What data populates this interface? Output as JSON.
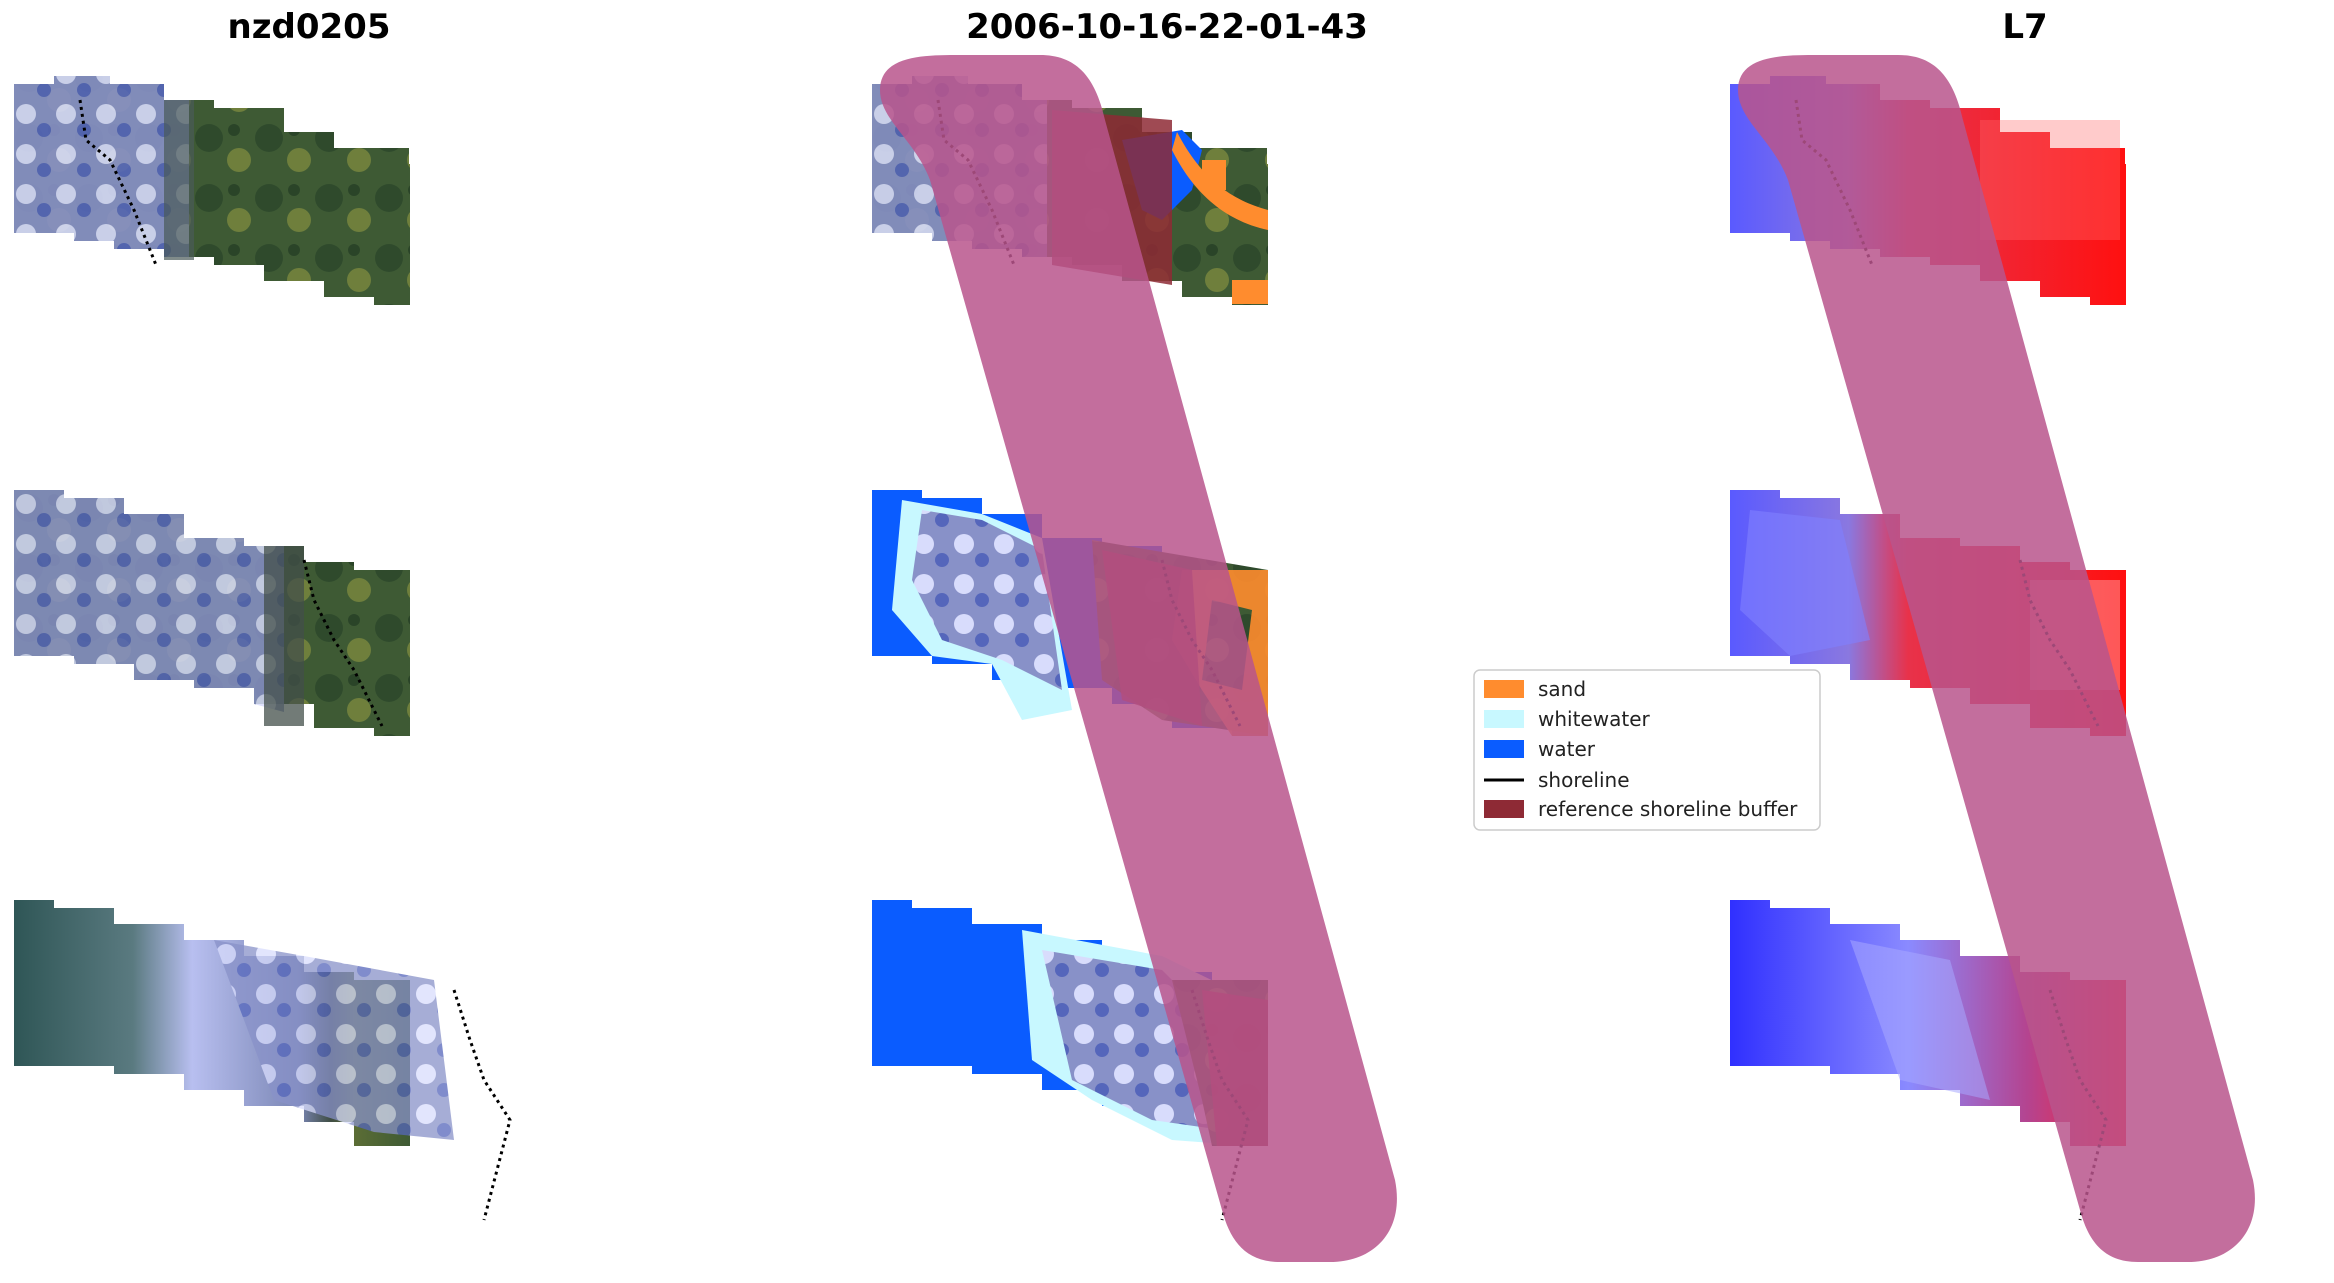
{
  "titles": {
    "left": "nzd0205",
    "center": "2006-10-16-22-01-43",
    "right": "L7"
  },
  "legend": {
    "items": [
      {
        "label": "sand",
        "color": "#ff8c2e",
        "kind": "patch"
      },
      {
        "label": "whitewater",
        "color": "#c8f8ff",
        "kind": "patch"
      },
      {
        "label": "water",
        "color": "#0a5cff",
        "kind": "patch"
      },
      {
        "label": "shoreline",
        "color": "#000000",
        "kind": "line"
      },
      {
        "label": "reference shoreline buffer",
        "color": "#8e2a35",
        "kind": "patch"
      }
    ]
  },
  "colors": {
    "land": "#3e5a34",
    "land_light": "#6f7f3c",
    "ocean_grey": "#3d6060",
    "surf": "#c8ccf4",
    "buffer_pink": "#b8558c",
    "buffer_red": "#8e2a35",
    "ndwi_water": "#3b3bff",
    "ndwi_land": "#ff1a1a",
    "shoreline": "#000000"
  }
}
